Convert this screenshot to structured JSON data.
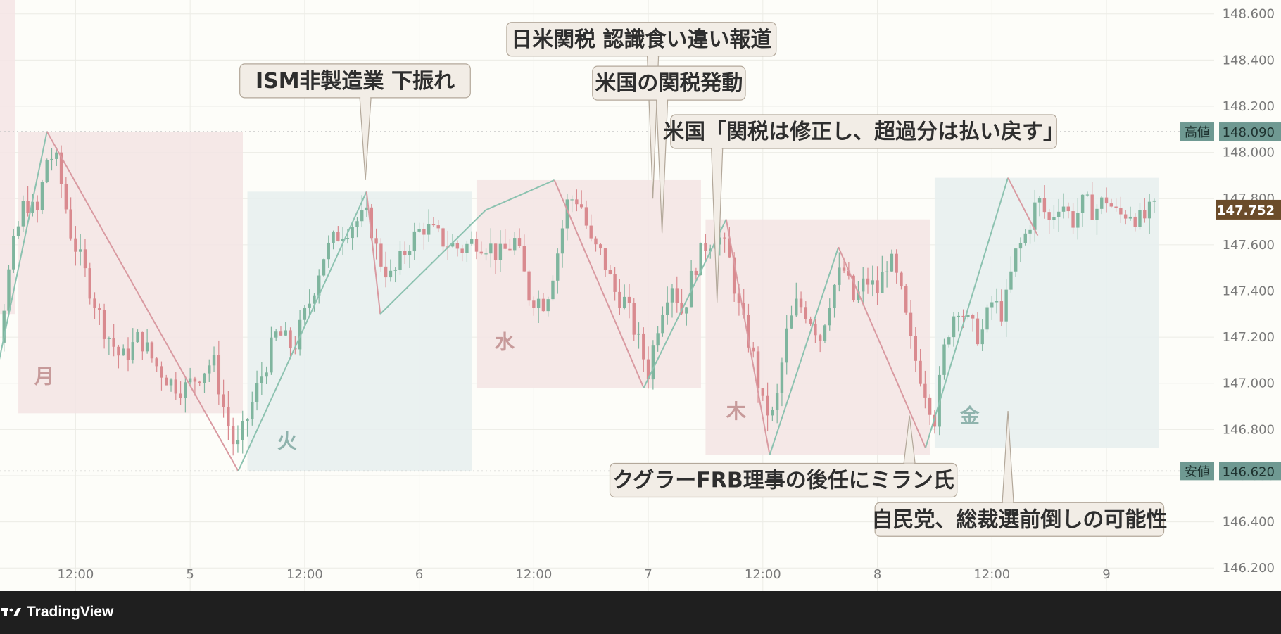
{
  "chart_data": {
    "type": "candlestick",
    "ylim": [
      146.1,
      148.66
    ],
    "y_ticks": [
      "148.600",
      "148.400",
      "148.200",
      "148.000",
      "147.800",
      "147.600",
      "147.400",
      "147.200",
      "147.000",
      "146.800",
      "146.600",
      "146.400",
      "146.200"
    ],
    "x_ticks": [
      {
        "label": "12:00",
        "t": 0.5
      },
      {
        "label": "5",
        "t": 1
      },
      {
        "label": "12:00",
        "t": 1.5
      },
      {
        "label": "6",
        "t": 2
      },
      {
        "label": "12:00",
        "t": 2.5
      },
      {
        "label": "7",
        "t": 3
      },
      {
        "label": "12:00",
        "t": 3.5
      },
      {
        "label": "8",
        "t": 4
      },
      {
        "label": "12:00",
        "t": 4.5
      },
      {
        "label": "9",
        "t": 5
      }
    ],
    "x_range": [
      0.17,
      5.47
    ],
    "high_line": {
      "label": "高値",
      "value": "148.090",
      "y": 148.09
    },
    "low_line": {
      "label": "安値",
      "value": "146.620",
      "y": 146.62
    },
    "current_price": {
      "value": "147.752",
      "y": 147.752
    },
    "days": [
      {
        "label": "月",
        "start": 0.25,
        "end": 1.23,
        "hi": 148.09,
        "lo": 146.87,
        "color": "pink"
      },
      {
        "label": "火",
        "start": 1.25,
        "end": 2.23,
        "hi": 147.83,
        "lo": 146.62,
        "color": "blue"
      },
      {
        "label": "水",
        "start": 2.25,
        "end": 3.23,
        "hi": 147.88,
        "lo": 146.98,
        "color": "pink"
      },
      {
        "label": "木",
        "start": 3.25,
        "end": 4.23,
        "hi": 147.71,
        "lo": 146.69,
        "color": "pink"
      },
      {
        "label": "金",
        "start": 4.25,
        "end": 5.23,
        "hi": 147.89,
        "lo": 146.72,
        "color": "blue"
      }
    ],
    "zigzag": [
      {
        "t": 0.12,
        "y": 146.88
      },
      {
        "t": 0.375,
        "y": 148.09
      },
      {
        "t": 1.21,
        "y": 146.62
      },
      {
        "t": 1.77,
        "y": 147.83
      },
      {
        "t": 1.83,
        "y": 147.3
      },
      {
        "t": 2.29,
        "y": 147.75
      },
      {
        "t": 2.59,
        "y": 147.88
      },
      {
        "t": 2.98,
        "y": 146.98
      },
      {
        "t": 3.34,
        "y": 147.71
      },
      {
        "t": 3.53,
        "y": 146.69
      },
      {
        "t": 3.83,
        "y": 147.59
      },
      {
        "t": 4.21,
        "y": 146.72
      },
      {
        "t": 4.57,
        "y": 147.89
      },
      {
        "t": 4.7,
        "y": 147.64
      }
    ],
    "candle_path": [
      [
        0.0,
        147.8
      ],
      [
        0.05,
        147.35
      ],
      [
        0.12,
        146.92
      ],
      [
        0.22,
        147.55
      ],
      [
        0.28,
        147.8
      ],
      [
        0.33,
        147.72
      ],
      [
        0.38,
        148.0
      ],
      [
        0.42,
        147.95
      ],
      [
        0.48,
        147.65
      ],
      [
        0.55,
        147.45
      ],
      [
        0.62,
        147.25
      ],
      [
        0.7,
        147.1
      ],
      [
        0.78,
        147.2
      ],
      [
        0.85,
        147.08
      ],
      [
        0.92,
        147.0
      ],
      [
        0.98,
        146.98
      ],
      [
        1.05,
        147.05
      ],
      [
        1.1,
        147.1
      ],
      [
        1.15,
        146.88
      ],
      [
        1.2,
        146.7
      ],
      [
        1.25,
        146.85
      ],
      [
        1.3,
        147.0
      ],
      [
        1.38,
        147.22
      ],
      [
        1.45,
        147.15
      ],
      [
        1.52,
        147.35
      ],
      [
        1.58,
        147.55
      ],
      [
        1.65,
        147.65
      ],
      [
        1.72,
        147.7
      ],
      [
        1.78,
        147.72
      ],
      [
        1.82,
        147.55
      ],
      [
        1.88,
        147.45
      ],
      [
        1.95,
        147.6
      ],
      [
        2.02,
        147.68
      ],
      [
        2.1,
        147.62
      ],
      [
        2.18,
        147.58
      ],
      [
        2.25,
        147.62
      ],
      [
        2.3,
        147.6
      ],
      [
        2.35,
        147.55
      ],
      [
        2.42,
        147.62
      ],
      [
        2.48,
        147.38
      ],
      [
        2.55,
        147.35
      ],
      [
        2.6,
        147.55
      ],
      [
        2.65,
        147.8
      ],
      [
        2.7,
        147.8
      ],
      [
        2.75,
        147.6
      ],
      [
        2.8,
        147.55
      ],
      [
        2.85,
        147.4
      ],
      [
        2.9,
        147.35
      ],
      [
        2.95,
        147.2
      ],
      [
        3.0,
        147.05
      ],
      [
        3.05,
        147.3
      ],
      [
        3.1,
        147.45
      ],
      [
        3.15,
        147.3
      ],
      [
        3.2,
        147.5
      ],
      [
        3.25,
        147.6
      ],
      [
        3.3,
        147.65
      ],
      [
        3.35,
        147.55
      ],
      [
        3.4,
        147.3
      ],
      [
        3.45,
        147.15
      ],
      [
        3.5,
        146.9
      ],
      [
        3.55,
        146.85
      ],
      [
        3.6,
        147.2
      ],
      [
        3.65,
        147.35
      ],
      [
        3.7,
        147.3
      ],
      [
        3.75,
        147.2
      ],
      [
        3.8,
        147.4
      ],
      [
        3.85,
        147.5
      ],
      [
        3.9,
        147.35
      ],
      [
        3.95,
        147.45
      ],
      [
        4.0,
        147.4
      ],
      [
        4.05,
        147.55
      ],
      [
        4.1,
        147.4
      ],
      [
        4.15,
        147.15
      ],
      [
        4.2,
        147.0
      ],
      [
        4.25,
        146.85
      ],
      [
        4.3,
        147.2
      ],
      [
        4.35,
        147.35
      ],
      [
        4.4,
        147.25
      ],
      [
        4.45,
        147.2
      ],
      [
        4.5,
        147.35
      ],
      [
        4.55,
        147.3
      ],
      [
        4.6,
        147.55
      ],
      [
        4.65,
        147.65
      ],
      [
        4.7,
        147.8
      ],
      [
        4.75,
        147.7
      ],
      [
        4.8,
        147.8
      ],
      [
        4.85,
        147.7
      ],
      [
        4.9,
        147.78
      ],
      [
        4.95,
        147.75
      ],
      [
        5.0,
        147.8
      ],
      [
        5.05,
        147.72
      ],
      [
        5.1,
        147.75
      ],
      [
        5.15,
        147.7
      ],
      [
        5.2,
        147.75
      ]
    ],
    "annotations": [
      {
        "text": "ISM非製造業 下振れ",
        "box_x": 1.72,
        "box_y": 148.31,
        "tip_t": 1.765,
        "tip_y": 147.88
      },
      {
        "text": "日米関税 認識食い違い報道",
        "box_x": 2.97,
        "box_y": 148.49,
        "tip_t": 3.02,
        "tip_y": 147.8
      },
      {
        "text": "米国の関税発動",
        "box_x": 3.09,
        "box_y": 148.3,
        "tip_t": 3.06,
        "tip_y": 147.65
      },
      {
        "text": "米国「関税は修正し、超過分は払い戻す」",
        "box_x": 3.94,
        "box_y": 148.09,
        "tip_t": 3.3,
        "tip_y": 147.35
      },
      {
        "text": "クグラーFRB理事の後任にミラン氏",
        "box_x": 3.59,
        "box_y": 146.58,
        "tip_t": 4.14,
        "tip_y": 146.86
      },
      {
        "text": "自民党、総裁選前倒しの可能性",
        "box_x": 4.62,
        "box_y": 146.41,
        "tip_t": 4.57,
        "tip_y": 146.88
      }
    ]
  },
  "footer": {
    "brand": "TradingView"
  }
}
